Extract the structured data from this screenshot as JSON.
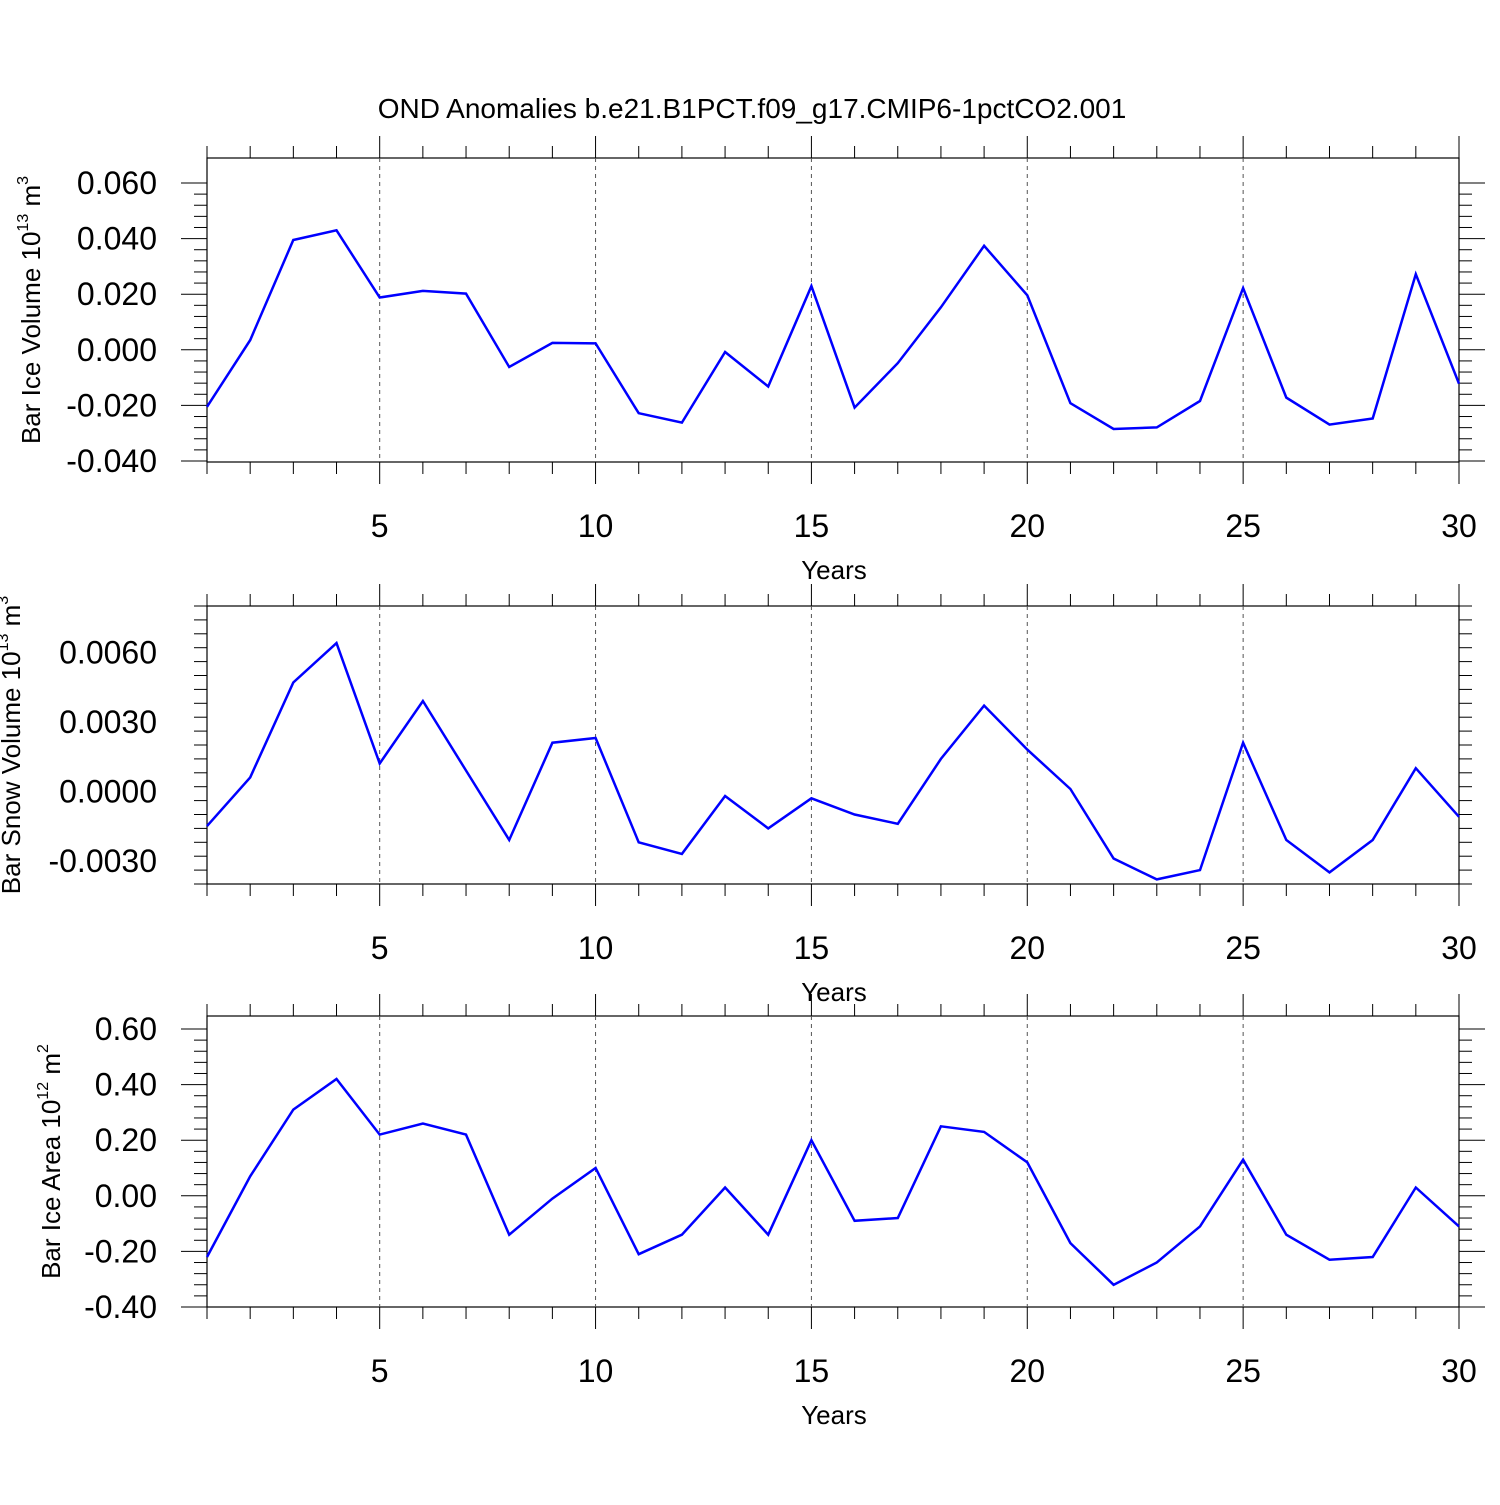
{
  "figure": {
    "title": "OND Anomalies b.e21.B1PCT.f09_g17.CMIP6-1pctCO2.001",
    "line_color": "#0000ff"
  },
  "chart_data": [
    {
      "type": "line",
      "title": "OND Anomalies b.e21.B1PCT.f09_g17.CMIP6-1pctCO2.001",
      "xlabel": "Years",
      "ylabel": "Bar Ice Volume 10",
      "ylabel_exp": "13",
      "ylabel_unit": " m",
      "ylabel_unit_exp": "3",
      "xlim": [
        1,
        30
      ],
      "ylim": [
        -0.04,
        0.06
      ],
      "xticks": [
        5,
        10,
        15,
        20,
        25,
        30
      ],
      "xtick_labels": [
        "5",
        "10",
        "15",
        "20",
        "25",
        "30"
      ],
      "yticks": [
        -0.04,
        -0.02,
        0.0,
        0.02,
        0.04,
        0.06
      ],
      "ytick_labels": [
        "-0.040",
        "-0.020",
        "0.000",
        "0.020",
        "0.040",
        "0.060"
      ],
      "ygrid": false,
      "xgrid": "dashed at major ticks",
      "series": [
        {
          "x": [
            1,
            2,
            3,
            4,
            5,
            6,
            7,
            8,
            9,
            10,
            11,
            12,
            13,
            14,
            15,
            16,
            17,
            18,
            19,
            20,
            21,
            22,
            23,
            24,
            25,
            26,
            27,
            28,
            29,
            30
          ],
          "values": [
            -0.0205,
            0.0035,
            0.0395,
            0.043,
            0.0188,
            0.0212,
            0.0202,
            -0.0062,
            0.0025,
            0.0023,
            -0.0228,
            -0.0262,
            -0.0008,
            -0.0132,
            0.0229,
            -0.0208,
            -0.0048,
            0.0153,
            0.0374,
            0.0196,
            -0.0192,
            -0.0285,
            -0.0279,
            -0.0184,
            0.0222,
            -0.0172,
            -0.0269,
            -0.0247,
            0.0272,
            -0.0122
          ]
        }
      ]
    },
    {
      "type": "line",
      "xlabel": "Years",
      "ylabel": "Bar Snow Volume 10",
      "ylabel_exp": "13",
      "ylabel_unit": " m",
      "ylabel_unit_exp": "3",
      "xlim": [
        1,
        30
      ],
      "ylim": [
        -0.004,
        0.008
      ],
      "xticks": [
        5,
        10,
        15,
        20,
        25,
        30
      ],
      "xtick_labels": [
        "5",
        "10",
        "15",
        "20",
        "25",
        "30"
      ],
      "yticks": [
        -0.003,
        0.0,
        0.003,
        0.006
      ],
      "ytick_labels": [
        "-0.0030",
        "0.0000",
        "0.0030",
        "0.0060"
      ],
      "ygrid": false,
      "xgrid": "dashed at major ticks",
      "series": [
        {
          "x": [
            1,
            2,
            3,
            4,
            5,
            6,
            7,
            8,
            9,
            10,
            11,
            12,
            13,
            14,
            15,
            16,
            17,
            18,
            19,
            20,
            21,
            22,
            23,
            24,
            25,
            26,
            27,
            28,
            29,
            30
          ],
          "values": [
            -0.0015,
            0.0006,
            0.0047,
            0.0064,
            0.0012,
            0.0039,
            0.0009,
            -0.0021,
            0.0021,
            0.0023,
            -0.0022,
            -0.0027,
            -0.0002,
            -0.0016,
            -0.0003,
            -0.001,
            -0.0014,
            0.0014,
            0.0037,
            0.0018,
            0.0001,
            -0.0029,
            -0.0038,
            -0.0034,
            0.0021,
            -0.0021,
            -0.0035,
            -0.0021,
            0.001,
            -0.0011
          ]
        }
      ]
    },
    {
      "type": "line",
      "xlabel": "Years",
      "ylabel": "Bar Ice Area 10",
      "ylabel_exp": "12",
      "ylabel_unit": " m",
      "ylabel_unit_exp": "2",
      "xlim": [
        1,
        30
      ],
      "ylim": [
        -0.4,
        0.6
      ],
      "xticks": [
        5,
        10,
        15,
        20,
        25,
        30
      ],
      "xtick_labels": [
        "5",
        "10",
        "15",
        "20",
        "25",
        "30"
      ],
      "yticks": [
        -0.4,
        -0.2,
        0.0,
        0.2,
        0.4,
        0.6
      ],
      "ytick_labels": [
        "-0.40",
        "-0.20",
        "0.00",
        "0.20",
        "0.40",
        "0.60"
      ],
      "ygrid": false,
      "xgrid": "dashed at major ticks",
      "series": [
        {
          "x": [
            1,
            2,
            3,
            4,
            5,
            6,
            7,
            8,
            9,
            10,
            11,
            12,
            13,
            14,
            15,
            16,
            17,
            18,
            19,
            20,
            21,
            22,
            23,
            24,
            25,
            26,
            27,
            28,
            29,
            30
          ],
          "values": [
            -0.22,
            0.07,
            0.31,
            0.42,
            0.22,
            0.26,
            0.22,
            -0.14,
            -0.01,
            0.1,
            -0.21,
            -0.14,
            0.03,
            -0.14,
            0.2,
            -0.09,
            -0.08,
            0.25,
            0.23,
            0.12,
            -0.17,
            -0.32,
            -0.24,
            -0.11,
            0.13,
            -0.14,
            -0.23,
            -0.22,
            0.03,
            -0.11
          ]
        }
      ]
    }
  ]
}
